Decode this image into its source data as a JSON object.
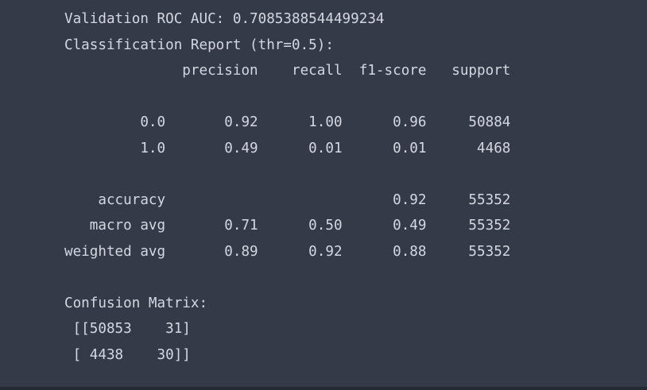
{
  "output": {
    "roc_auc_line": "Validation ROC AUC: 0.7085388544499234",
    "report_title": "Classification Report (thr=0.5):",
    "header_row": "              precision    recall  f1-score   support",
    "blank_1": "",
    "row_0": "         0.0       0.92      1.00      0.96     50884",
    "row_1": "         1.0       0.49      0.01      0.01      4468",
    "blank_2": "",
    "accuracy_row": "    accuracy                           0.92     55352",
    "macro_row": "   macro avg       0.71      0.50      0.49     55352",
    "weighted_row": "weighted avg       0.89      0.92      0.88     55352",
    "blank_3": "",
    "confusion_title": "Confusion Matrix:",
    "matrix_row_1": " [[50853    31]",
    "matrix_row_2": " [ 4438    30]]"
  }
}
